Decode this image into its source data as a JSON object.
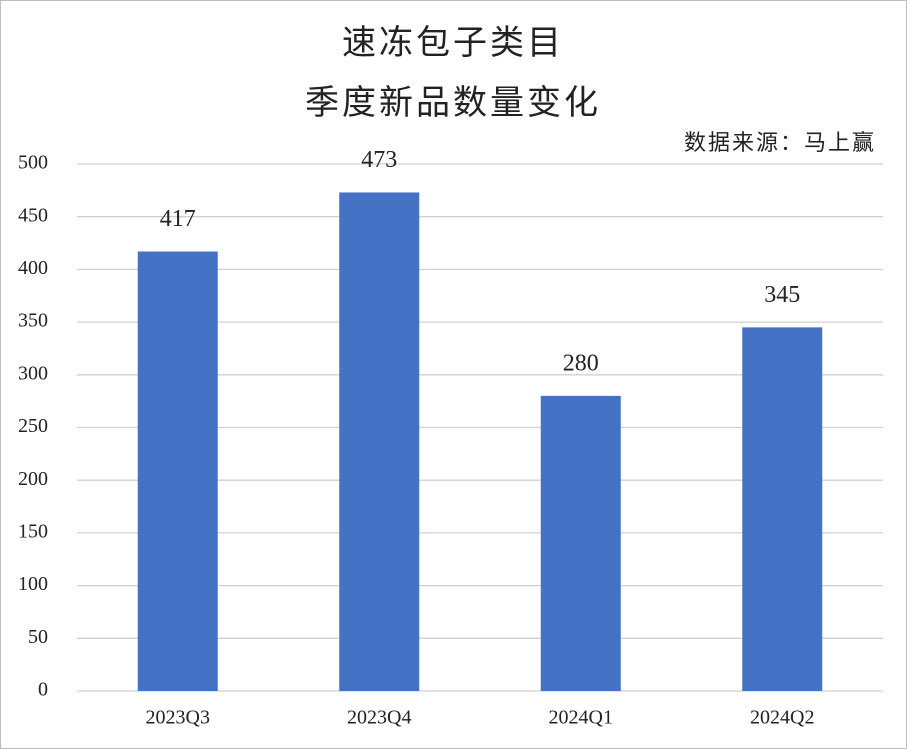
{
  "chart_data": {
    "type": "bar",
    "title": "速冻包子类目",
    "subtitle": "季度新品数量变化",
    "annotation": "数据来源：马上赢",
    "categories": [
      "2023Q3",
      "2023Q4",
      "2024Q1",
      "2024Q2"
    ],
    "values": [
      417,
      473,
      280,
      345
    ],
    "color": "#4472c4",
    "ylim": [
      0,
      500
    ],
    "yticks": [
      0,
      50,
      100,
      150,
      200,
      250,
      300,
      350,
      400,
      450,
      500
    ],
    "grid": true
  }
}
